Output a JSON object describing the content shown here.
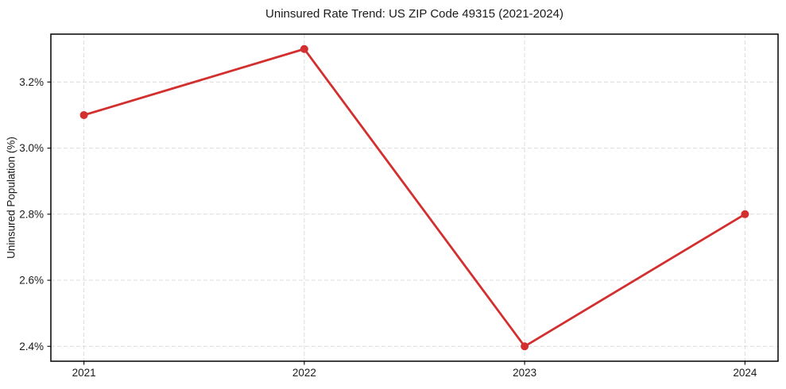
{
  "chart_data": {
    "type": "line",
    "title": "Uninsured Rate Trend: US ZIP Code 49315 (2021-2024)",
    "xlabel": "",
    "ylabel": "Uninsured Population (%)",
    "x": [
      2021,
      2022,
      2023,
      2024
    ],
    "x_tick_labels": [
      "2021",
      "2022",
      "2023",
      "2024"
    ],
    "series": [
      {
        "name": "Uninsured Population (%)",
        "values": [
          3.1,
          3.3,
          2.4,
          2.8
        ]
      }
    ],
    "y_tick_values": [
      2.4,
      2.6,
      2.8,
      3.0,
      3.2
    ],
    "y_tick_labels": [
      "2.4%",
      "2.6%",
      "2.8%",
      "3.0%",
      "3.2%"
    ],
    "xlim": [
      2020.85,
      2024.15
    ],
    "ylim": [
      2.355,
      3.345
    ],
    "grid": true,
    "legend_position": "none",
    "colors": {
      "line": "#d32f2f",
      "marker": "#d32f2f",
      "grid": "#dcdcdc",
      "frame": "#000000",
      "text": "#1a1a1a",
      "background": "#ffffff"
    }
  }
}
